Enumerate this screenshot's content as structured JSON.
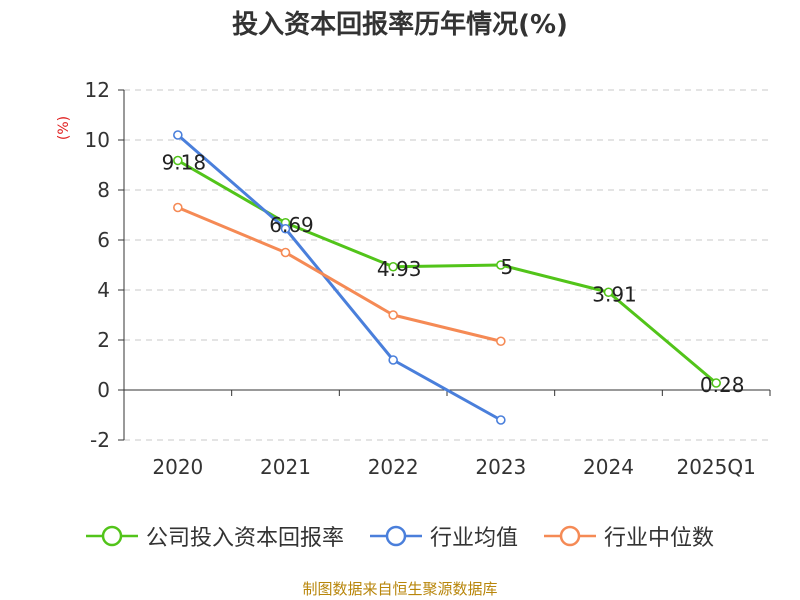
{
  "title": "投入资本回报率历年情况(%)",
  "source": "制图数据来自恒生聚源数据库",
  "chart_data": {
    "type": "line",
    "title": "投入资本回报率历年情况(%)",
    "ylabel": "(%)",
    "xlabel": "",
    "ylim": [
      -2,
      12
    ],
    "yticks": [
      -2,
      0,
      2,
      4,
      6,
      8,
      10,
      12
    ],
    "grid": true,
    "legend_position": "bottom",
    "categories": [
      "2020",
      "2021",
      "2022",
      "2023",
      "2024",
      "2025Q1"
    ],
    "series": [
      {
        "name": "公司投入资本回报率",
        "color": "#52c41a",
        "values": [
          9.18,
          6.69,
          4.93,
          5,
          3.91,
          0.28
        ],
        "labels": [
          "9.18",
          "6.69",
          "4.93",
          "5",
          "3.91",
          "0.28"
        ]
      },
      {
        "name": "行业均值",
        "color": "#4a7fdb",
        "values": [
          10.2,
          6.45,
          1.2,
          -1.2,
          null,
          null
        ]
      },
      {
        "name": "行业中位数",
        "color": "#f58a55",
        "values": [
          7.3,
          5.5,
          3.0,
          1.95,
          null,
          null
        ]
      }
    ]
  }
}
